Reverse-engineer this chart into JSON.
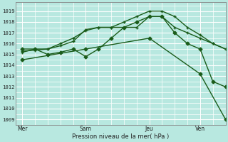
{
  "background_color": "#b8e8e0",
  "grid_color": "#ffffff",
  "line_color": "#1a5c1a",
  "xlabel": "Pression niveau de la mer( hPa )",
  "ylim": [
    1008.5,
    1019.8
  ],
  "yticks": [
    1009,
    1010,
    1011,
    1012,
    1013,
    1014,
    1015,
    1016,
    1017,
    1018,
    1019
  ],
  "day_labels": [
    "Mer",
    "Sam",
    "Jeu",
    "Ven"
  ],
  "day_positions": [
    0,
    30,
    60,
    84
  ],
  "xlim": [
    -3,
    96
  ],
  "series": [
    {
      "x": [
        0,
        6,
        12,
        18,
        24,
        30,
        36,
        42,
        48,
        54,
        60,
        66,
        72,
        78,
        84,
        90,
        96
      ],
      "y": [
        1015.2,
        1015.5,
        1015.5,
        1015.8,
        1016.2,
        1017.3,
        1017.5,
        1017.5,
        1017.5,
        1017.5,
        1018.5,
        1018.5,
        1017.5,
        1017.0,
        1016.5,
        1016.0,
        1015.5
      ],
      "marker": "+",
      "markersize": 3.5,
      "linewidth": 1.0
    },
    {
      "x": [
        0,
        6,
        12,
        18,
        24,
        30,
        36,
        42,
        48,
        54,
        60,
        66,
        72,
        78,
        84,
        90,
        96
      ],
      "y": [
        1015.3,
        1015.4,
        1015.5,
        1016.0,
        1016.5,
        1017.2,
        1017.5,
        1017.5,
        1018.0,
        1018.5,
        1019.0,
        1019.0,
        1018.5,
        1017.5,
        1016.8,
        1016.0,
        1015.5
      ],
      "marker": "+",
      "markersize": 3.5,
      "linewidth": 1.0
    },
    {
      "x": [
        0,
        6,
        12,
        18,
        24,
        30,
        36,
        42,
        48,
        54,
        60,
        66,
        72,
        78,
        84,
        90,
        96
      ],
      "y": [
        1015.5,
        1015.5,
        1015.0,
        1015.2,
        1015.5,
        1014.8,
        1015.5,
        1016.5,
        1017.5,
        1018.0,
        1018.5,
        1018.5,
        1017.0,
        1016.0,
        1015.5,
        1012.5,
        1012.0
      ],
      "marker": "D",
      "markersize": 2.5,
      "linewidth": 1.0
    },
    {
      "x": [
        0,
        30,
        60,
        84,
        96
      ],
      "y": [
        1014.5,
        1015.5,
        1016.5,
        1013.2,
        1009.0
      ],
      "marker": "D",
      "markersize": 2.5,
      "linewidth": 1.0
    }
  ]
}
